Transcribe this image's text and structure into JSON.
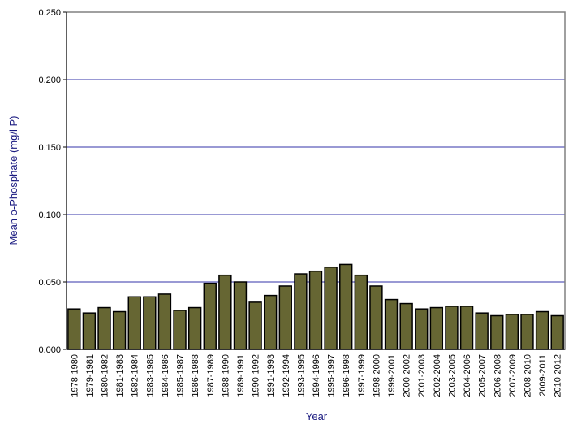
{
  "chart_data": {
    "type": "bar",
    "xlabel": "Year",
    "ylabel": "Mean o-Phosphate (mg/l P)",
    "categories": [
      "1978-1980",
      "1979-1981",
      "1980-1982",
      "1981-1983",
      "1982-1984",
      "1983-1985",
      "1984-1986",
      "1985-1987",
      "1986-1988",
      "1987-1989",
      "1988-1990",
      "1989-1991",
      "1990-1992",
      "1991-1993",
      "1992-1994",
      "1993-1995",
      "1994-1996",
      "1995-1997",
      "1996-1998",
      "1997-1999",
      "1998-2000",
      "1999-2001",
      "2000-2002",
      "2001-2003",
      "2002-2004",
      "2003-2005",
      "2004-2006",
      "2005-2007",
      "2006-2008",
      "2007-2009",
      "2008-2010",
      "2009-2011",
      "2010-2012"
    ],
    "values": [
      0.03,
      0.027,
      0.031,
      0.028,
      0.039,
      0.039,
      0.041,
      0.029,
      0.031,
      0.049,
      0.055,
      0.05,
      0.035,
      0.04,
      0.047,
      0.056,
      0.058,
      0.061,
      0.063,
      0.055,
      0.047,
      0.037,
      0.034,
      0.03,
      0.031,
      0.032,
      0.032,
      0.027,
      0.025,
      0.026,
      0.026,
      0.028,
      0.025
    ],
    "color": "#666633",
    "ylim": [
      0,
      0.25
    ],
    "yticks": [
      {
        "value": 0,
        "label": "0.000"
      },
      {
        "value": 0.05,
        "label": "0.050"
      },
      {
        "value": 0.1,
        "label": "0.100"
      },
      {
        "value": 0.15,
        "label": "0.150"
      },
      {
        "value": 0.2,
        "label": "0.200"
      },
      {
        "value": 0.25,
        "label": "0.250"
      }
    ],
    "grid": true,
    "grid_color": "#3333aa"
  }
}
